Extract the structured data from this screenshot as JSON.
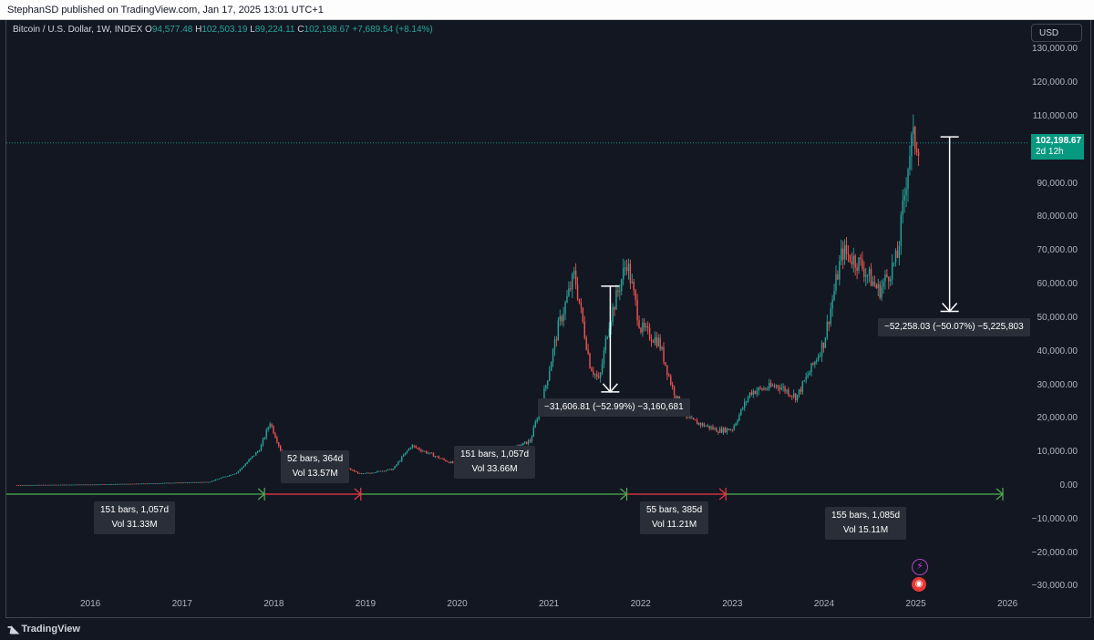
{
  "header": {
    "published": "StephanSD published on TradingView.com, Jan 17, 2025 13:01 UTC+1"
  },
  "legend": {
    "symbol": "Bitcoin / U.S. Dollar, 1W, INDEX",
    "o_label": "O",
    "o_value": "94,577.48",
    "h_label": "H",
    "h_value": "102,503.19",
    "l_label": "L",
    "l_value": "89,224.11",
    "c_label": "C",
    "c_value": "102,198.67",
    "change": "+7,689.54 (+8.14%)"
  },
  "currency_button": "USD",
  "last_price": {
    "price": "102,198.67",
    "countdown": "2d 12h"
  },
  "footer": {
    "brand": "TradingView"
  },
  "colors": {
    "up": "#26a69a",
    "down": "#ef5350",
    "green_range": "#4caf50",
    "red_range": "#f23645",
    "price_line": "#089981"
  },
  "chart_data": {
    "type": "candlestick",
    "interval": "1W",
    "y_axis": {
      "ticks": [
        "130,000.00",
        "120,000.00",
        "110,000.00",
        "100,000.00",
        "90,000.00",
        "80,000.00",
        "70,000.00",
        "60,000.00",
        "50,000.00",
        "40,000.00",
        "30,000.00",
        "20,000.00",
        "10,000.00",
        "0.00",
        "−10,000.00",
        "−20,000.00",
        "−30,000.00"
      ],
      "range": [
        -33000,
        133000
      ]
    },
    "x_axis": {
      "ticks": [
        "2016",
        "2017",
        "2018",
        "2019",
        "2020",
        "2021",
        "2022",
        "2023",
        "2024",
        "2025",
        "2026"
      ]
    },
    "price_series_approx": [
      [
        2015.2,
        250
      ],
      [
        2016.0,
        430
      ],
      [
        2016.5,
        650
      ],
      [
        2017.0,
        1000
      ],
      [
        2017.3,
        1200
      ],
      [
        2017.6,
        4000
      ],
      [
        2017.85,
        11000
      ],
      [
        2017.96,
        19000
      ],
      [
        2018.1,
        9000
      ],
      [
        2018.4,
        7500
      ],
      [
        2018.7,
        6500
      ],
      [
        2018.95,
        3500
      ],
      [
        2019.3,
        5000
      ],
      [
        2019.5,
        12000
      ],
      [
        2019.9,
        7200
      ],
      [
        2020.2,
        5000
      ],
      [
        2020.5,
        9500
      ],
      [
        2020.8,
        13500
      ],
      [
        2020.96,
        29000
      ],
      [
        2021.1,
        47000
      ],
      [
        2021.28,
        63000
      ],
      [
        2021.45,
        36000
      ],
      [
        2021.55,
        31000
      ],
      [
        2021.65,
        48000
      ],
      [
        2021.85,
        67000
      ],
      [
        2022.0,
        47000
      ],
      [
        2022.2,
        43000
      ],
      [
        2022.35,
        29000
      ],
      [
        2022.5,
        20000
      ],
      [
        2022.85,
        16500
      ],
      [
        2023.0,
        17000
      ],
      [
        2023.2,
        28000
      ],
      [
        2023.5,
        30000
      ],
      [
        2023.7,
        26500
      ],
      [
        2023.9,
        37000
      ],
      [
        2024.0,
        43000
      ],
      [
        2024.2,
        70000
      ],
      [
        2024.4,
        66000
      ],
      [
        2024.6,
        58000
      ],
      [
        2024.8,
        68000
      ],
      [
        2024.92,
        97000
      ],
      [
        2024.96,
        103000
      ],
      [
        2025.04,
        102198.67
      ]
    ],
    "ranges": [
      {
        "bars_label": "151 bars, 1,057d",
        "vol_label": "Vol 31.33M",
        "from": 2015.0,
        "to": 2017.9,
        "color": "green"
      },
      {
        "bars_label": "52 bars, 364d",
        "vol_label": "Vol 13.57M",
        "from": 2017.9,
        "to": 2018.95,
        "color": "red"
      },
      {
        "bars_label": "151 bars, 1,057d",
        "vol_label": "Vol 33.66M",
        "from": 2018.95,
        "to": 2021.85,
        "color": "green"
      },
      {
        "bars_label": "55 bars, 385d",
        "vol_label": "Vol 11.21M",
        "from": 2021.85,
        "to": 2022.93,
        "color": "red"
      },
      {
        "bars_label": "155 bars, 1,085d",
        "vol_label": "Vol 15.11M",
        "from": 2022.93,
        "to": 2025.95,
        "color": "green"
      }
    ],
    "drawdowns": [
      {
        "label": "−31,606.81 (−52.99%) −3,160,681",
        "x": 2021.67,
        "from_price": 59500,
        "to_price": 28000
      },
      {
        "label": "−52,258.03 (−50.07%) −5,225,803",
        "x": 2025.37,
        "from_price": 104000,
        "to_price": 52000
      }
    ],
    "last_price": 102198.67
  }
}
